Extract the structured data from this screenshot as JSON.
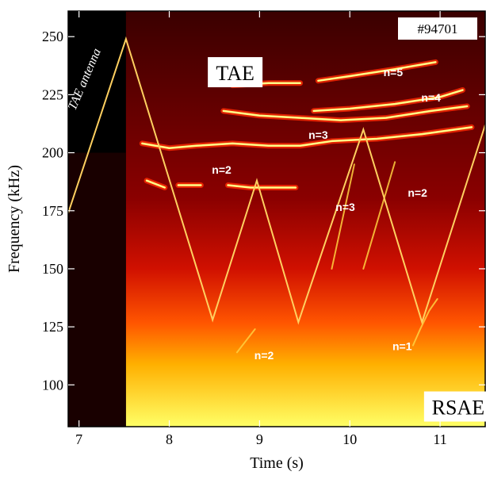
{
  "chart_data": {
    "type": "heatmap",
    "title": "",
    "xlabel": "Time (s)",
    "ylabel": "Frequency (kHz)",
    "xlim": [
      6.88,
      11.5
    ],
    "ylim": [
      82,
      261
    ],
    "x_ticks": [
      7,
      8,
      9,
      10,
      11
    ],
    "y_ticks": [
      100,
      125,
      150,
      175,
      200,
      225,
      250
    ],
    "colormap": "black-red-yellow",
    "colors": {
      "background": "#000000",
      "low": "#8a0000",
      "mid": "#ff2a00",
      "high": "#ffff66",
      "antenna_line": "#ffd060",
      "frame": "#000000"
    },
    "shot_label": "#94701",
    "annotations": [
      {
        "text": "TAE",
        "x": 8.73,
        "y": 234,
        "style": "boxed"
      },
      {
        "text": "RSAE",
        "x": 11.2,
        "y": 90,
        "style": "boxed"
      },
      {
        "text": "n=5",
        "x": 10.48,
        "y": 233,
        "style": "mode"
      },
      {
        "text": "n=4",
        "x": 10.9,
        "y": 222,
        "style": "mode"
      },
      {
        "text": "n=3",
        "x": 9.65,
        "y": 206,
        "style": "mode"
      },
      {
        "text": "n=2",
        "x": 8.58,
        "y": 191,
        "style": "mode"
      },
      {
        "text": "n=3",
        "x": 9.95,
        "y": 175,
        "style": "mode"
      },
      {
        "text": "n=2",
        "x": 10.75,
        "y": 181,
        "style": "mode"
      },
      {
        "text": "n=2",
        "x": 9.05,
        "y": 111,
        "style": "mode"
      },
      {
        "text": "n=1",
        "x": 10.58,
        "y": 115,
        "style": "mode"
      },
      {
        "text": "TAE antenna",
        "x": 7.1,
        "y": 231,
        "style": "antenna"
      }
    ],
    "series": [
      {
        "name": "TAE antenna",
        "kind": "line",
        "x": [
          6.88,
          7.52,
          8.48,
          8.97,
          9.43,
          10.15,
          10.8,
          11.5
        ],
        "y": [
          174,
          249,
          128,
          188,
          127,
          210,
          127,
          212
        ]
      },
      {
        "name": "n=5",
        "kind": "mode",
        "x": [
          9.65,
          10.0,
          10.5,
          10.95
        ],
        "y": [
          231,
          233,
          236,
          239
        ]
      },
      {
        "name": "n=4",
        "kind": "mode",
        "x": [
          9.6,
          10.0,
          10.5,
          11.0,
          11.25
        ],
        "y": [
          218,
          219,
          221,
          224,
          227
        ]
      },
      {
        "name": "n=4 (early)",
        "kind": "mode",
        "x": [
          8.7,
          9.1,
          9.45
        ],
        "y": [
          229,
          230,
          230
        ]
      },
      {
        "name": "n=3",
        "kind": "mode",
        "x": [
          8.6,
          9.0,
          9.45,
          9.9,
          10.4,
          10.9,
          11.3
        ],
        "y": [
          218,
          216,
          215,
          214,
          215,
          218,
          220
        ]
      },
      {
        "name": "n=3 band",
        "kind": "mode",
        "x": [
          7.7,
          8.0,
          8.3,
          8.7,
          9.1,
          9.45,
          9.8,
          10.3,
          10.8,
          11.35
        ],
        "y": [
          204,
          202,
          203,
          204,
          203,
          203,
          205,
          206,
          208,
          211
        ]
      },
      {
        "name": "n=2",
        "kind": "mode",
        "x": [
          7.75,
          7.95
        ],
        "y": [
          188,
          185
        ]
      },
      {
        "name": "n=2 (b)",
        "kind": "mode",
        "x": [
          8.1,
          8.35
        ],
        "y": [
          186,
          186
        ]
      },
      {
        "name": "n=2 (c)",
        "kind": "mode",
        "x": [
          8.65,
          8.9,
          9.2,
          9.4
        ],
        "y": [
          186,
          185,
          185,
          185
        ]
      },
      {
        "name": "n=3 chirp",
        "kind": "chirp",
        "x": [
          9.8,
          10.05
        ],
        "y": [
          150,
          195
        ]
      },
      {
        "name": "n=2 chirp",
        "kind": "chirp",
        "x": [
          10.15,
          10.5
        ],
        "y": [
          150,
          196
        ]
      },
      {
        "name": "n=2 low",
        "kind": "chirp",
        "x": [
          8.75,
          8.85,
          8.95
        ],
        "y": [
          114,
          119,
          124
        ]
      },
      {
        "name": "n=1",
        "kind": "chirp",
        "x": [
          10.7,
          10.78,
          10.88,
          10.97
        ],
        "y": [
          117,
          124,
          132,
          137
        ]
      }
    ]
  }
}
